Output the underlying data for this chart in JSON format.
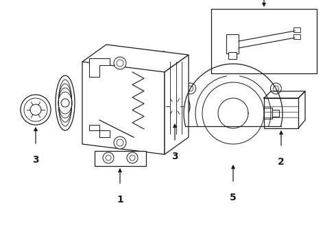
{
  "bg_color": "#ffffff",
  "line_color": "#1a1a1a",
  "figsize": [
    4.9,
    3.6
  ],
  "dpi": 100,
  "lw": 0.9
}
